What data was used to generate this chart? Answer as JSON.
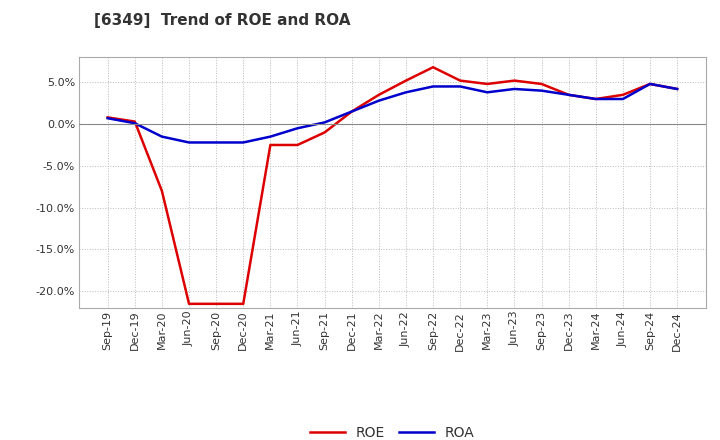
{
  "title": "[6349]  Trend of ROE and ROA",
  "x_labels": [
    "Sep-19",
    "Dec-19",
    "Mar-20",
    "Jun-20",
    "Sep-20",
    "Dec-20",
    "Mar-21",
    "Jun-21",
    "Sep-21",
    "Dec-21",
    "Mar-22",
    "Jun-22",
    "Sep-22",
    "Dec-22",
    "Mar-23",
    "Jun-23",
    "Sep-23",
    "Dec-23",
    "Mar-24",
    "Jun-24",
    "Sep-24",
    "Dec-24"
  ],
  "roe": [
    0.8,
    0.3,
    -8.0,
    -21.5,
    -21.5,
    -21.5,
    -2.5,
    -2.5,
    -1.0,
    1.5,
    3.5,
    5.2,
    6.8,
    5.2,
    4.8,
    5.2,
    4.8,
    3.5,
    3.0,
    3.5,
    4.8,
    4.2
  ],
  "roa": [
    0.7,
    0.1,
    -1.5,
    -2.2,
    -2.2,
    -2.2,
    -1.5,
    -0.5,
    0.2,
    1.5,
    2.8,
    3.8,
    4.5,
    4.5,
    3.8,
    4.2,
    4.0,
    3.5,
    3.0,
    3.0,
    4.8,
    4.2
  ],
  "roe_color": "#dd0000",
  "roa_color": "#0000cc",
  "ylim": [
    -22,
    8
  ],
  "yticks": [
    -20,
    -15,
    -10,
    -5,
    0,
    5
  ],
  "background_color": "#ffffff",
  "plot_bg_color": "#ffffff",
  "grid_color": "#bbbbbb",
  "title_fontsize": 11,
  "legend_fontsize": 10,
  "tick_fontsize": 8
}
